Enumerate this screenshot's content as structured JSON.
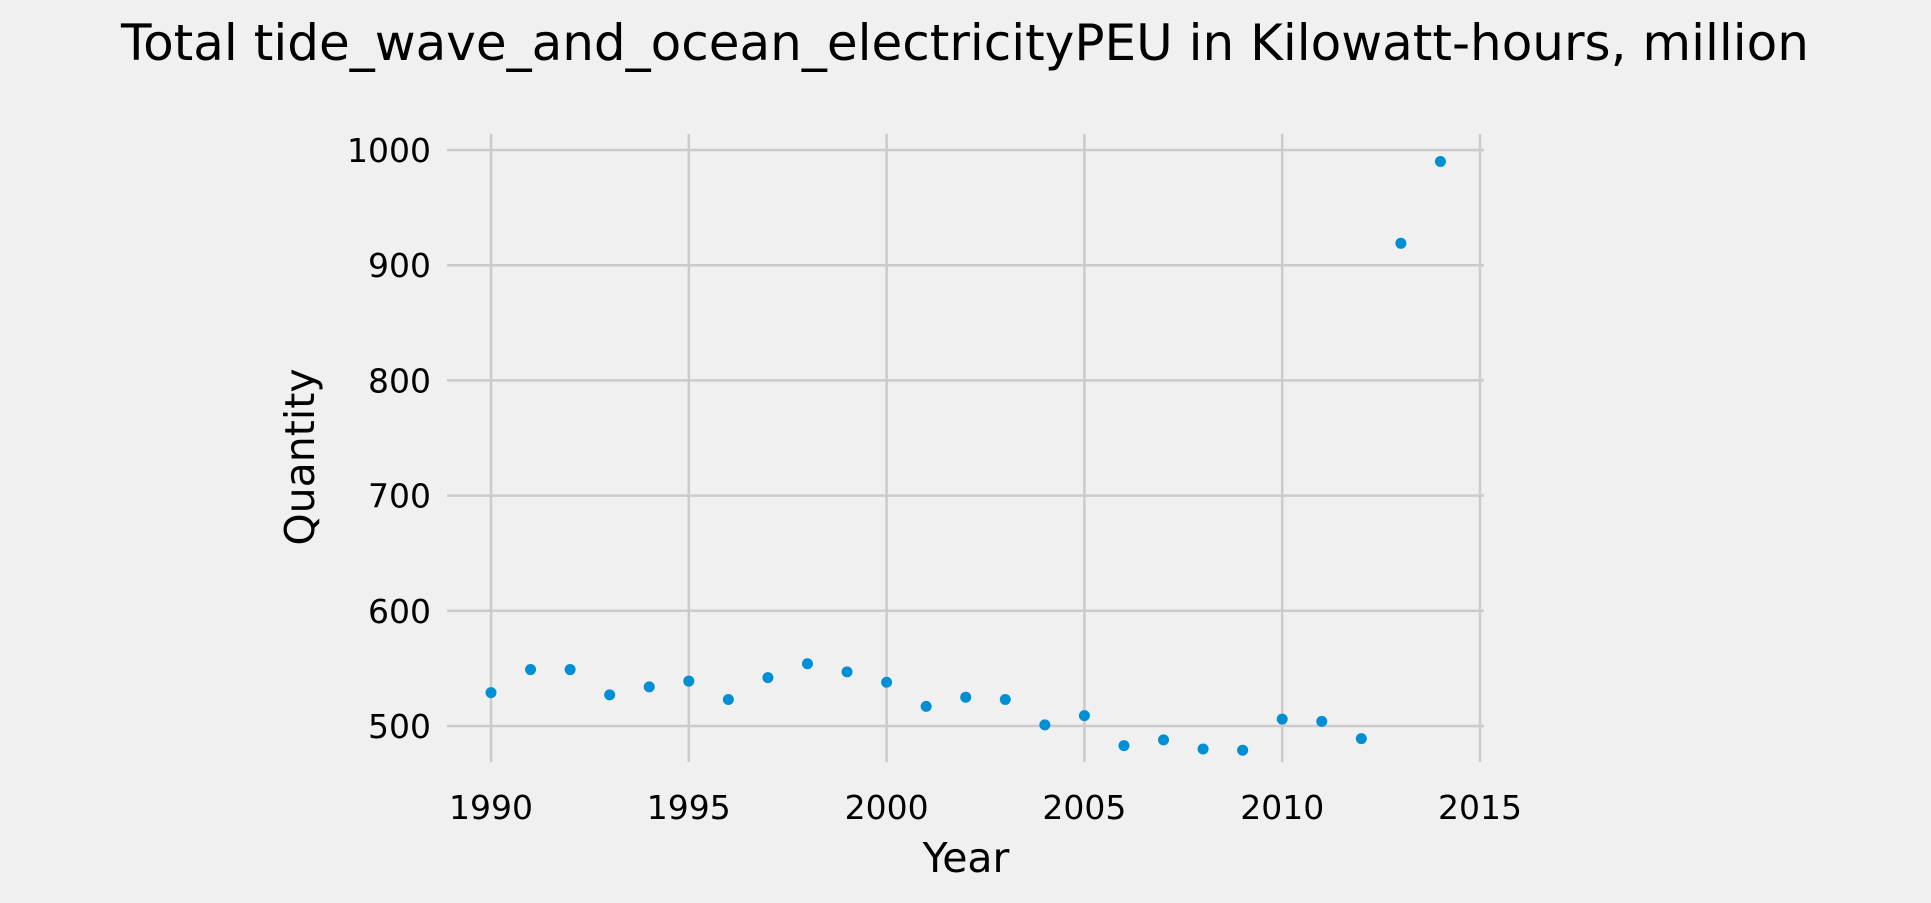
{
  "chart_data": {
    "type": "scatter",
    "title": "Total tide_wave_and_ocean_electricityPEU in Kilowatt-hours, million",
    "xlabel": "Year",
    "ylabel": "Quantity",
    "xlim": [
      1990,
      2015
    ],
    "ylim": [
      480,
      1000
    ],
    "xticks": [
      "1990",
      "1995",
      "2000",
      "2005",
      "2010",
      "2015"
    ],
    "yticks": [
      "500",
      "600",
      "700",
      "800",
      "900",
      "1000"
    ],
    "grid": true,
    "color": "#008fd5",
    "x": [
      1990,
      1991,
      1992,
      1993,
      1994,
      1995,
      1996,
      1997,
      1998,
      1999,
      2000,
      2001,
      2002,
      2003,
      2004,
      2005,
      2006,
      2007,
      2008,
      2009,
      2010,
      2011,
      2012,
      2013,
      2014
    ],
    "y": [
      529,
      549,
      549,
      527,
      534,
      539,
      523,
      542,
      554,
      547,
      538,
      517,
      525,
      523,
      501,
      509,
      483,
      488,
      480,
      479,
      506,
      504,
      489,
      919,
      990
    ]
  }
}
